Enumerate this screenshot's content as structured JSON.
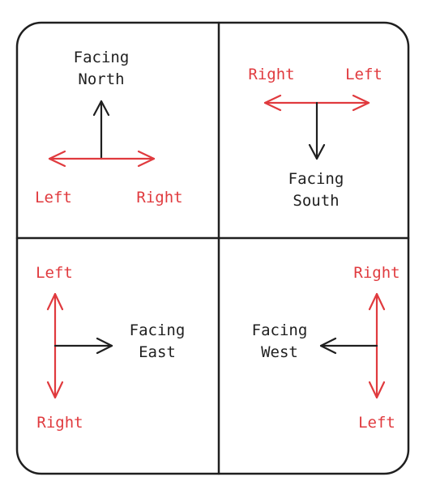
{
  "colors": {
    "forward_arrow": "#1f1f1f",
    "side_arrows": "#e03a3e",
    "frame": "#1f1f1f",
    "background": "#ffffff"
  },
  "panels": {
    "north": {
      "facing_line1": "Facing",
      "facing_line2": "North",
      "left_label": "Left",
      "right_label": "Right"
    },
    "south": {
      "facing_line1": "Facing",
      "facing_line2": "South",
      "left_label": "Left",
      "right_label": "Right"
    },
    "east": {
      "facing_line1": "Facing",
      "facing_line2": "East",
      "left_label": "Left",
      "right_label": "Right"
    },
    "west": {
      "facing_line1": "Facing",
      "facing_line2": "West",
      "left_label": "Left",
      "right_label": "Right"
    }
  }
}
